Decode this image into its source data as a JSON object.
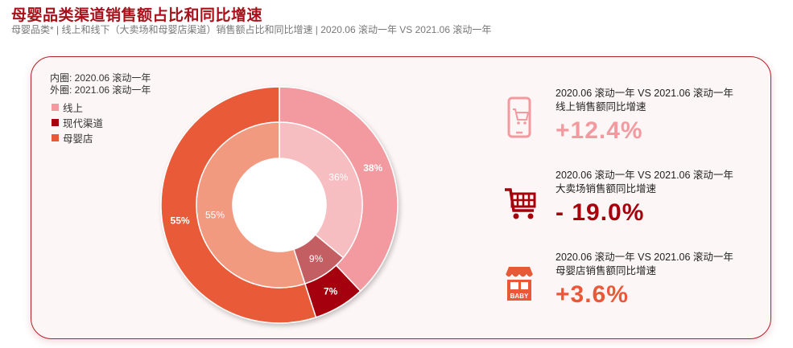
{
  "title": "母婴品类渠道销售额占比和同比增速",
  "subtitle": "母婴品类* | 线上和线下（大卖场和母婴店渠道）销售额占比和同比增速 | 2020.06 滚动一年 VS 2021.06 滚动一年",
  "ring_notes": {
    "inner": "内圈:   2020.06 滚动一年",
    "outer": "外圈:   2021.06 滚动一年"
  },
  "legend": [
    {
      "label": "线上",
      "color": "#f29aa0"
    },
    {
      "label": "现代渠道",
      "color": "#a5000c"
    },
    {
      "label": "母婴店",
      "color": "#e85a37"
    }
  ],
  "chart_data": {
    "type": "pie",
    "subtype": "nested-donut",
    "categories": [
      "线上",
      "现代渠道",
      "母婴店"
    ],
    "series": [
      {
        "ring": "outer",
        "values": [
          38,
          7,
          55
        ],
        "labels": [
          "38%",
          "7%",
          "55%"
        ],
        "colors": [
          "#f29aa0",
          "#a5000c",
          "#e85a37"
        ]
      },
      {
        "ring": "inner",
        "values": [
          36,
          9,
          55
        ],
        "labels": [
          "36%",
          "9%",
          "55%"
        ],
        "colors": [
          "#f6bec1",
          "#c35f63",
          "#f29a80"
        ]
      }
    ],
    "legend_position": "top-left"
  },
  "kpis": [
    {
      "desc1": "2020.06 滚动一年 VS 2021.06 滚动一年",
      "desc2": "线上销售额同比增速",
      "value": "+12.4%",
      "color": "#f29aa0",
      "icon": "phone-cart-icon"
    },
    {
      "desc1": "2020.06 滚动一年 VS 2021.06 滚动一年",
      "desc2": "大卖场销售额同比增速",
      "value": "- 19.0%",
      "color": "#a5000c",
      "icon": "shopping-cart-icon"
    },
    {
      "desc1": "2020.06 滚动一年 VS 2021.06 滚动一年",
      "desc2": "母婴店销售额同比增速",
      "value": "+3.6%",
      "color": "#e85a37",
      "icon": "baby-store-icon",
      "icon_text": "BABY"
    }
  ]
}
